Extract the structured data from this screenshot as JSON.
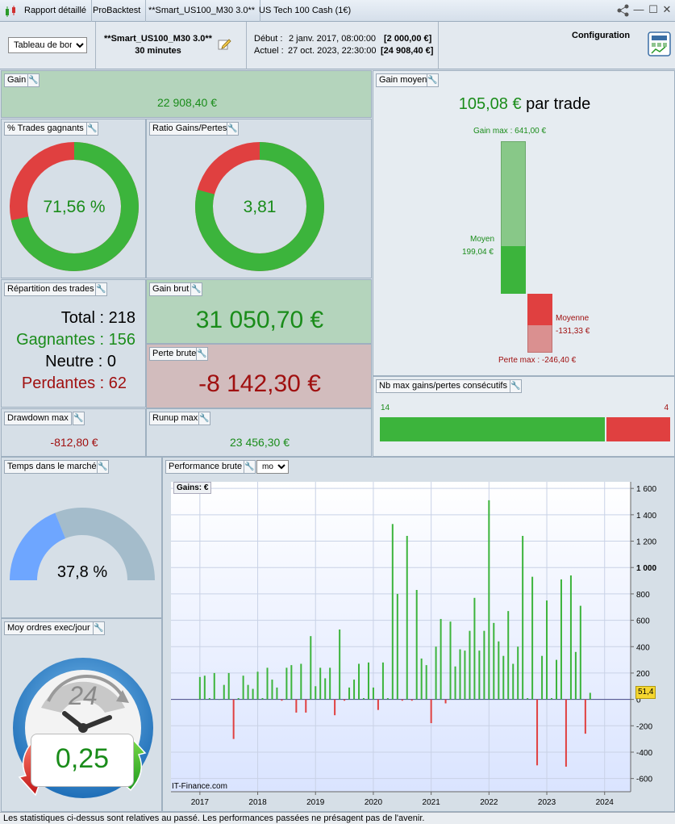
{
  "titlebar": {
    "tab_report": "Rapport détaillé",
    "tab_probacktest": "ProBacktest",
    "tab_strategy": "**Smart_US100_M30 3.0**",
    "tab_instrument": "US Tech 100 Cash (1€)"
  },
  "header": {
    "view_select": "Tableau de bord",
    "strategy_name": "**Smart_US100_M30 3.0**",
    "timeframe": "30 minutes",
    "start_label": "Début :",
    "start_date": "2 janv. 2017, 08:00:00",
    "start_value": "[2 000,00 €]",
    "current_label": "Actuel :",
    "current_date": "27 oct. 2023, 22:30:00",
    "current_value": "[24 908,40 €]",
    "config_label": "Configuration"
  },
  "gain": {
    "title": "Gain",
    "value": "22 908,40 €"
  },
  "win_rate": {
    "title": "% Trades gagnants",
    "value": "71,56 %",
    "fraction": 0.7156
  },
  "ratio": {
    "title": "Ratio Gains/Pertes",
    "value": "3,81",
    "fraction": 0.7921
  },
  "avg_gain": {
    "title": "Gain moyen",
    "value": "105,08 €",
    "suffix": "par trade",
    "max_gain_label": "Gain max : 641,00 €",
    "avg_label": "Moyen",
    "avg_value": "199,04 €",
    "avg_loss_label": "Moyenne",
    "avg_loss_value": "-131,33 €",
    "max_loss_label": "Perte max : -246,40 €",
    "max_gain": 641.0,
    "avg_win": 199.04,
    "avg_loss": -131.33,
    "max_loss": -246.4
  },
  "trades": {
    "title": "Répartition des trades",
    "total_label": "Total :",
    "total": "218",
    "winners_label": "Gagnantes :",
    "winners": "156",
    "neutral_label": "Neutre :",
    "neutral": "0",
    "losers_label": "Perdantes :",
    "losers": "62"
  },
  "gross_gain": {
    "title": "Gain brut",
    "value": "31 050,70 €"
  },
  "gross_loss": {
    "title": "Perte brute",
    "value": "-8 142,30 €"
  },
  "consecutive": {
    "title": "Nb max gains/pertes consécutifs",
    "wins": "14",
    "losses": "4",
    "win_count": 14,
    "loss_count": 4
  },
  "drawdown": {
    "title": "Drawdown max",
    "value": "-812,80 €"
  },
  "runup": {
    "title": "Runup max",
    "value": "23 456,30 €"
  },
  "market_time": {
    "title": "Temps dans le marché",
    "value": "37,8 %",
    "fraction": 0.378
  },
  "orders": {
    "title": "Moy ordres exec/jour",
    "value": "0,25",
    "clock_label": "24"
  },
  "performance": {
    "title": "Performance brute",
    "period_select": "mois",
    "legend": "Gains: €",
    "watermark": "IT-Finance.com",
    "last_value": "51,4"
  },
  "footer": {
    "text": "Les statistiques ci-dessus sont relatives au passé. Les performances passées ne présagent pas de l'avenir."
  },
  "colors": {
    "win": "#3cb43c",
    "loss": "#e04040",
    "blue": "#6ea6ff",
    "grey": "#a4bccb"
  },
  "chart_data": {
    "type": "bar",
    "ylim": [
      -700,
      1650
    ],
    "yticks": [
      -600,
      -400,
      -200,
      0,
      200,
      400,
      600,
      800,
      1000,
      1200,
      1400,
      1600
    ],
    "ytick_labels": [
      "-600",
      "-400",
      "-200",
      "0",
      "200",
      "400",
      "600",
      "800",
      "1 000",
      "1 200",
      "1 400",
      "1 600"
    ],
    "xticks": [
      2017,
      2018,
      2019,
      2020,
      2021,
      2022,
      2023,
      2024
    ],
    "xtick_labels": [
      "2017",
      "2018",
      "2019",
      "2020",
      "2021",
      "2022",
      "2023",
      "2024"
    ],
    "x": [
      2017.0,
      2017.083,
      2017.167,
      2017.25,
      2017.333,
      2017.417,
      2017.5,
      2017.583,
      2017.667,
      2017.75,
      2017.833,
      2017.917,
      2018.0,
      2018.083,
      2018.167,
      2018.25,
      2018.333,
      2018.417,
      2018.5,
      2018.583,
      2018.667,
      2018.75,
      2018.833,
      2018.917,
      2019.0,
      2019.083,
      2019.167,
      2019.25,
      2019.333,
      2019.417,
      2019.5,
      2019.583,
      2019.667,
      2019.75,
      2019.833,
      2019.917,
      2020.0,
      2020.083,
      2020.167,
      2020.25,
      2020.333,
      2020.417,
      2020.5,
      2020.583,
      2020.667,
      2020.75,
      2020.833,
      2020.917,
      2021.0,
      2021.083,
      2021.167,
      2021.25,
      2021.333,
      2021.417,
      2021.5,
      2021.583,
      2021.667,
      2021.75,
      2021.833,
      2021.917,
      2022.0,
      2022.083,
      2022.167,
      2022.25,
      2022.333,
      2022.417,
      2022.5,
      2022.583,
      2022.667,
      2022.75,
      2022.833,
      2022.917,
      2023.0,
      2023.083,
      2023.167,
      2023.25,
      2023.333,
      2023.417,
      2023.5,
      2023.583,
      2023.667,
      2023.75
    ],
    "values": [
      170,
      180,
      10,
      200,
      0,
      110,
      200,
      -300,
      10,
      180,
      110,
      80,
      210,
      10,
      240,
      150,
      90,
      -10,
      240,
      260,
      -100,
      270,
      -100,
      480,
      100,
      240,
      160,
      240,
      -120,
      530,
      -10,
      90,
      150,
      270,
      10,
      280,
      90,
      -80,
      280,
      10,
      1330,
      800,
      -10,
      1240,
      -10,
      830,
      310,
      260,
      -180,
      400,
      610,
      -30,
      590,
      250,
      380,
      370,
      520,
      770,
      370,
      520,
      1510,
      580,
      440,
      330,
      670,
      270,
      400,
      1240,
      10,
      930,
      -500,
      330,
      750,
      10,
      300,
      910,
      -510,
      940,
      360,
      710,
      -260,
      50
    ]
  }
}
